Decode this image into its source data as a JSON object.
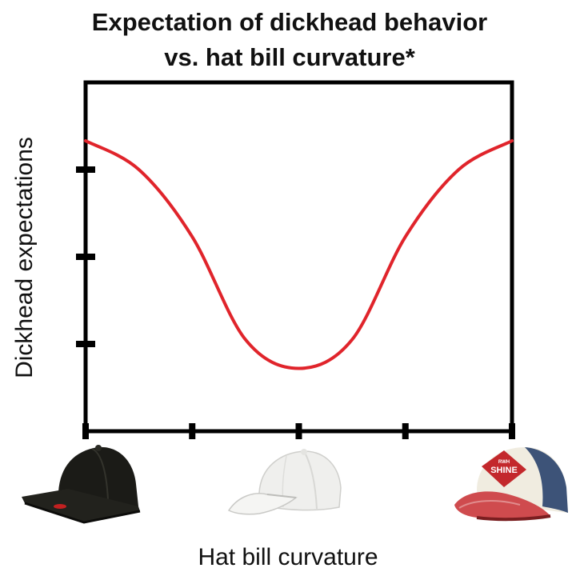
{
  "chart_data": {
    "type": "line",
    "title_line1": "Expectation of dickhead behavior",
    "title_line2": "vs. hat bill curvature*",
    "xlabel": "Hat bill curvature",
    "ylabel": "Dickhead expectations",
    "xlim": [
      0,
      4
    ],
    "ylim": [
      0,
      4
    ],
    "x_ticks": [
      0,
      1,
      2,
      3,
      4
    ],
    "y_ticks": [
      1,
      2,
      3
    ],
    "x_tick_images": [
      {
        "x": 0,
        "name": "flat-bill-cap"
      },
      {
        "x": 2,
        "name": "curved-bill-cap"
      },
      {
        "x": 4,
        "name": "worn-trucker-cap"
      }
    ],
    "series": [
      {
        "color": "#e0242b",
        "points": [
          [
            0,
            3.33
          ],
          [
            0.5,
            3.0
          ],
          [
            1,
            2.23
          ],
          [
            1.5,
            1.05
          ],
          [
            2,
            0.72
          ],
          [
            2.5,
            1.05
          ],
          [
            3,
            2.23
          ],
          [
            3.5,
            3.0
          ],
          [
            4,
            3.33
          ]
        ]
      }
    ]
  },
  "hat3_text": "SHINE",
  "hat3_small": "RWH"
}
